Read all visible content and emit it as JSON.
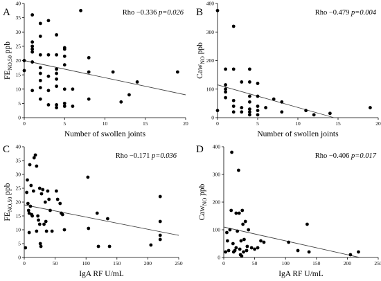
{
  "chart_data": [
    {
      "type": "scatter",
      "panel": "A",
      "stat": {
        "rho": "Rho −0.336",
        "p": "p=0.026"
      },
      "xlabel": "Number of swollen joints",
      "ylabel": {
        "main": "FE",
        "sub": "NO,50",
        "tail": " ppb"
      },
      "xlim": [
        0,
        20
      ],
      "ylim": [
        0,
        40
      ],
      "xticks": [
        0,
        5,
        10,
        15,
        20
      ],
      "yticks": [
        0,
        5,
        10,
        15,
        20,
        25,
        30,
        35,
        40
      ],
      "points": [
        [
          0,
          16.5
        ],
        [
          0,
          20
        ],
        [
          1,
          36
        ],
        [
          1,
          26.5
        ],
        [
          1,
          25
        ],
        [
          1,
          24
        ],
        [
          1,
          23
        ],
        [
          1,
          19.5
        ],
        [
          1,
          9.5
        ],
        [
          2,
          33
        ],
        [
          2,
          28.5
        ],
        [
          2,
          22
        ],
        [
          2,
          17.5
        ],
        [
          2,
          15.5
        ],
        [
          2,
          13
        ],
        [
          2,
          10.5
        ],
        [
          2,
          6.5
        ],
        [
          3,
          34
        ],
        [
          3,
          22
        ],
        [
          3,
          14.5
        ],
        [
          3,
          9.5
        ],
        [
          3,
          4.5
        ],
        [
          4,
          29
        ],
        [
          4,
          22
        ],
        [
          4,
          17
        ],
        [
          4,
          15.5
        ],
        [
          4,
          13.5
        ],
        [
          4,
          11
        ],
        [
          4,
          4.5
        ],
        [
          4,
          3.5
        ],
        [
          5,
          24.5
        ],
        [
          5,
          24
        ],
        [
          5,
          21.5
        ],
        [
          5,
          18.5
        ],
        [
          5,
          10
        ],
        [
          5,
          5
        ],
        [
          5,
          4
        ],
        [
          6,
          10
        ],
        [
          6,
          4
        ],
        [
          7,
          37.5
        ],
        [
          8,
          21
        ],
        [
          8,
          16
        ],
        [
          8,
          6.5
        ],
        [
          11,
          16
        ],
        [
          12,
          5.5
        ],
        [
          13,
          8
        ],
        [
          14,
          12.5
        ],
        [
          19,
          16
        ]
      ],
      "trend": [
        [
          0,
          20
        ],
        [
          20,
          8
        ]
      ]
    },
    {
      "type": "scatter",
      "panel": "B",
      "stat": {
        "rho": "Rho −0.479",
        "p": "p=0.004"
      },
      "xlabel": "Number of swollen joints",
      "ylabel": {
        "main": "Caw",
        "sub": "NO",
        "tail": " ppb"
      },
      "xlim": [
        0,
        20
      ],
      "ylim": [
        0,
        400
      ],
      "xticks": [
        0,
        5,
        10,
        15,
        20
      ],
      "yticks": [
        0,
        100,
        200,
        300,
        400
      ],
      "points": [
        [
          0,
          375
        ],
        [
          0,
          25
        ],
        [
          1,
          170
        ],
        [
          1,
          115
        ],
        [
          1,
          100
        ],
        [
          1,
          90
        ],
        [
          1,
          70
        ],
        [
          2,
          320
        ],
        [
          2,
          170
        ],
        [
          2,
          60
        ],
        [
          2,
          40
        ],
        [
          2,
          20
        ],
        [
          3,
          125
        ],
        [
          3,
          35
        ],
        [
          3,
          20
        ],
        [
          4,
          170
        ],
        [
          4,
          125
        ],
        [
          4,
          75
        ],
        [
          4,
          55
        ],
        [
          4,
          30
        ],
        [
          4,
          20
        ],
        [
          4,
          10
        ],
        [
          5,
          120
        ],
        [
          5,
          75
        ],
        [
          5,
          40
        ],
        [
          5,
          25
        ],
        [
          5,
          10
        ],
        [
          6,
          35
        ],
        [
          7,
          65
        ],
        [
          8,
          55
        ],
        [
          8,
          20
        ],
        [
          11,
          25
        ],
        [
          12,
          10
        ],
        [
          14,
          15
        ],
        [
          19,
          35
        ]
      ],
      "trend": [
        [
          0,
          115
        ],
        [
          14.5,
          0
        ]
      ]
    },
    {
      "type": "scatter",
      "panel": "C",
      "stat": {
        "rho": "Rho −0.171",
        "p": "p=0.036"
      },
      "xlabel": "IgA RF U/mL",
      "ylabel": {
        "main": "FE",
        "sub": "NO,50",
        "tail": " ppb"
      },
      "xlim": [
        0,
        250
      ],
      "ylim": [
        0,
        40
      ],
      "xticks": [
        0,
        50,
        100,
        150,
        200,
        250
      ],
      "yticks": [
        0,
        5,
        10,
        15,
        20,
        25,
        30,
        35,
        40
      ],
      "points": [
        [
          2,
          3.5
        ],
        [
          4,
          23.5
        ],
        [
          5,
          28
        ],
        [
          6,
          19.5
        ],
        [
          7,
          17
        ],
        [
          8,
          9
        ],
        [
          8,
          16
        ],
        [
          9,
          33.5
        ],
        [
          10,
          18.5
        ],
        [
          11,
          26
        ],
        [
          12,
          15.5
        ],
        [
          13,
          15
        ],
        [
          15,
          24
        ],
        [
          16,
          36
        ],
        [
          18,
          37
        ],
        [
          20,
          33
        ],
        [
          20,
          9.5
        ],
        [
          22,
          15
        ],
        [
          23,
          13.5
        ],
        [
          25,
          12
        ],
        [
          25,
          25
        ],
        [
          26,
          5
        ],
        [
          27,
          4
        ],
        [
          28,
          23
        ],
        [
          30,
          24.5
        ],
        [
          32,
          12
        ],
        [
          34,
          20
        ],
        [
          35,
          13
        ],
        [
          36,
          9.5
        ],
        [
          38,
          24
        ],
        [
          40,
          21
        ],
        [
          42,
          17
        ],
        [
          45,
          9.5
        ],
        [
          52,
          24
        ],
        [
          54,
          21
        ],
        [
          58,
          19.5
        ],
        [
          60,
          16
        ],
        [
          62,
          15.5
        ],
        [
          65,
          10
        ],
        [
          103,
          29
        ],
        [
          104,
          10.5
        ],
        [
          118,
          16
        ],
        [
          120,
          4
        ],
        [
          135,
          14
        ],
        [
          138,
          4
        ],
        [
          205,
          4.5
        ],
        [
          220,
          22
        ],
        [
          220,
          13
        ],
        [
          220,
          8
        ],
        [
          220,
          6.5
        ]
      ],
      "trend": [
        [
          0,
          19
        ],
        [
          250,
          8
        ]
      ]
    },
    {
      "type": "scatter",
      "panel": "D",
      "stat": {
        "rho": "Rho −0.406",
        "p": "p=0.017"
      },
      "xlabel": "IgA RF U/mL",
      "ylabel": {
        "main": "Caw",
        "sub": "NO",
        "tail": " ppb"
      },
      "xlim": [
        0,
        250
      ],
      "ylim": [
        0,
        400
      ],
      "xticks": [
        0,
        50,
        100,
        150,
        200,
        250
      ],
      "yticks": [
        0,
        100,
        200,
        300,
        400
      ],
      "points": [
        [
          3,
          20
        ],
        [
          5,
          90
        ],
        [
          6,
          60
        ],
        [
          8,
          25
        ],
        [
          10,
          100
        ],
        [
          12,
          170
        ],
        [
          13,
          380
        ],
        [
          15,
          50
        ],
        [
          16,
          20
        ],
        [
          18,
          25
        ],
        [
          20,
          160
        ],
        [
          20,
          35
        ],
        [
          22,
          95
        ],
        [
          24,
          315
        ],
        [
          25,
          160
        ],
        [
          26,
          30
        ],
        [
          27,
          10
        ],
        [
          28,
          60
        ],
        [
          29,
          5
        ],
        [
          30,
          170
        ],
        [
          31,
          120
        ],
        [
          32,
          20
        ],
        [
          33,
          65
        ],
        [
          35,
          130
        ],
        [
          37,
          25
        ],
        [
          38,
          40
        ],
        [
          40,
          100
        ],
        [
          45,
          35
        ],
        [
          50,
          30
        ],
        [
          55,
          35
        ],
        [
          60,
          60
        ],
        [
          65,
          55
        ],
        [
          105,
          55
        ],
        [
          120,
          25
        ],
        [
          135,
          120
        ],
        [
          138,
          20
        ],
        [
          205,
          10
        ],
        [
          218,
          20
        ]
      ],
      "trend": [
        [
          0,
          110
        ],
        [
          220,
          0
        ]
      ]
    }
  ]
}
